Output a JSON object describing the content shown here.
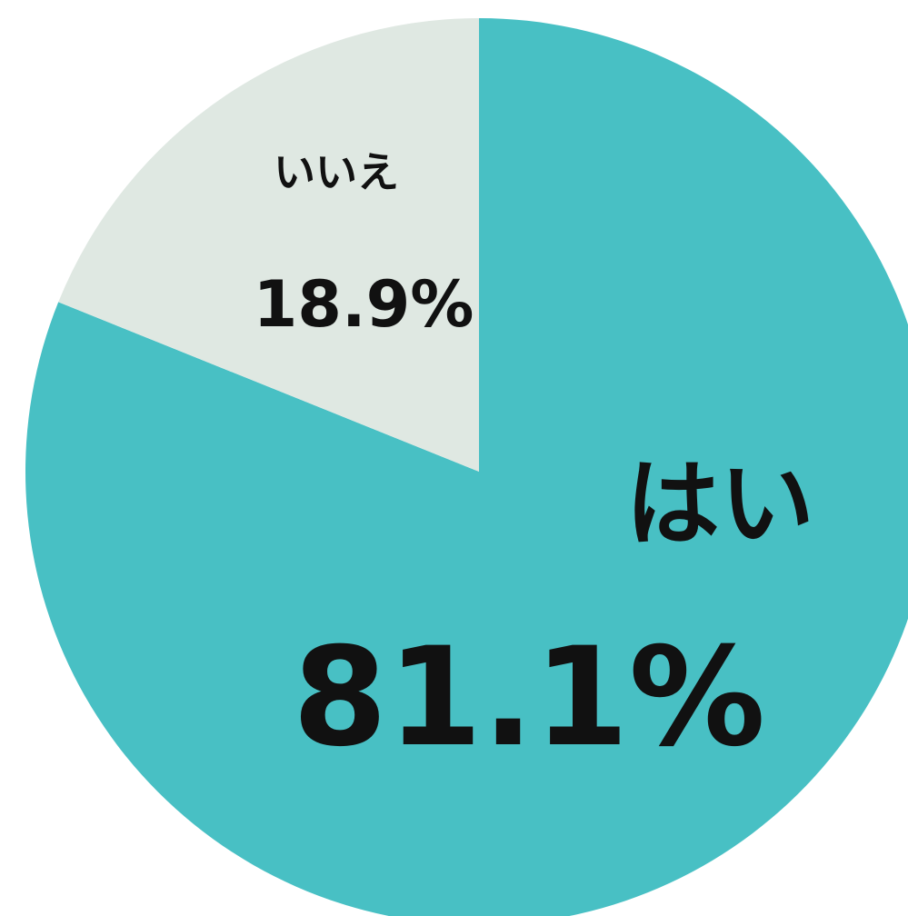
{
  "chart_data": {
    "type": "pie",
    "categories": [
      "はい",
      "いいえ"
    ],
    "values": [
      81.1,
      18.9
    ],
    "value_labels": [
      "81.1%",
      "18.9%"
    ],
    "colors": [
      "#48c0c4",
      "#dfe8e2"
    ]
  }
}
